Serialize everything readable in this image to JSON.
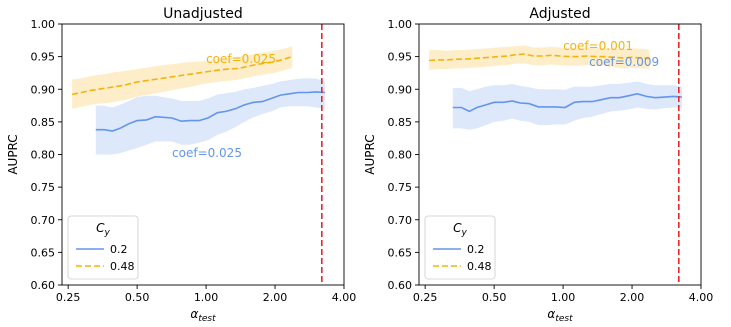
{
  "chart_data": [
    {
      "type": "line",
      "title": "Unadjusted",
      "xlabel_main": "α",
      "xlabel_sub": "test",
      "ylabel": "AUPRC",
      "xscale": "log",
      "xlim": [
        0.235,
        4.0
      ],
      "ylim": [
        0.6,
        1.0
      ],
      "xticks": [
        0.25,
        0.5,
        1.0,
        2.0,
        4.0
      ],
      "xtick_labels": [
        "0.25",
        "0.50",
        "1.00",
        "2.00",
        "4.00"
      ],
      "yticks": [
        0.6,
        0.65,
        0.7,
        0.75,
        0.8,
        0.85,
        0.9,
        0.95,
        1.0
      ],
      "ytick_labels": [
        "0.60",
        "0.65",
        "0.70",
        "0.75",
        "0.80",
        "0.85",
        "0.90",
        "0.95",
        "1.00"
      ],
      "vline_x": 3.2,
      "legend_title_main": "C",
      "legend_title_sub": "y",
      "legend_position": "lower left",
      "series": [
        {
          "name": "0.2",
          "color": "#6495ED",
          "style": "solid",
          "x": [
            0.33,
            0.36,
            0.39,
            0.42,
            0.46,
            0.5,
            0.55,
            0.6,
            0.65,
            0.71,
            0.78,
            0.85,
            0.93,
            1.02,
            1.12,
            1.22,
            1.34,
            1.47,
            1.61,
            1.76,
            1.93,
            2.11,
            2.31,
            2.53,
            2.77,
            3.03,
            3.3
          ],
          "y": [
            0.838,
            0.838,
            0.836,
            0.84,
            0.847,
            0.852,
            0.853,
            0.858,
            0.857,
            0.856,
            0.851,
            0.852,
            0.852,
            0.856,
            0.864,
            0.866,
            0.87,
            0.876,
            0.88,
            0.881,
            0.886,
            0.891,
            0.893,
            0.895,
            0.895,
            0.896,
            0.895
          ],
          "lower": [
            0.8,
            0.8,
            0.8,
            0.802,
            0.806,
            0.81,
            0.815,
            0.82,
            0.82,
            0.82,
            0.815,
            0.815,
            0.818,
            0.822,
            0.83,
            0.835,
            0.842,
            0.85,
            0.857,
            0.862,
            0.866,
            0.872,
            0.874,
            0.874,
            0.874,
            0.872,
            0.87
          ],
          "upper": [
            0.875,
            0.875,
            0.872,
            0.876,
            0.882,
            0.888,
            0.89,
            0.89,
            0.888,
            0.886,
            0.882,
            0.882,
            0.882,
            0.886,
            0.892,
            0.894,
            0.896,
            0.9,
            0.902,
            0.905,
            0.908,
            0.912,
            0.914,
            0.916,
            0.917,
            0.916,
            0.912
          ]
        },
        {
          "name": "0.48",
          "color": "#F5B30A",
          "style": "dashed",
          "x": [
            0.26,
            0.285,
            0.31,
            0.34,
            0.37,
            0.4,
            0.44,
            0.48,
            0.52,
            0.57,
            0.62,
            0.68,
            0.74,
            0.81,
            0.89,
            0.97,
            1.06,
            1.16,
            1.27,
            1.39,
            1.52,
            1.66,
            1.82,
            1.99,
            2.18,
            2.38
          ],
          "y": [
            0.892,
            0.895,
            0.898,
            0.9,
            0.902,
            0.904,
            0.906,
            0.91,
            0.912,
            0.914,
            0.916,
            0.918,
            0.92,
            0.922,
            0.924,
            0.926,
            0.928,
            0.93,
            0.931,
            0.932,
            0.935,
            0.938,
            0.94,
            0.942,
            0.946,
            0.95
          ],
          "lower": [
            0.87,
            0.873,
            0.876,
            0.878,
            0.879,
            0.881,
            0.883,
            0.887,
            0.89,
            0.892,
            0.895,
            0.897,
            0.9,
            0.902,
            0.905,
            0.908,
            0.91,
            0.912,
            0.913,
            0.915,
            0.918,
            0.921,
            0.923,
            0.925,
            0.929,
            0.933
          ],
          "upper": [
            0.915,
            0.917,
            0.92,
            0.922,
            0.924,
            0.926,
            0.928,
            0.93,
            0.932,
            0.934,
            0.936,
            0.938,
            0.939,
            0.941,
            0.942,
            0.943,
            0.945,
            0.947,
            0.948,
            0.95,
            0.952,
            0.955,
            0.957,
            0.959,
            0.962,
            0.966
          ]
        }
      ],
      "annotations": [
        {
          "text": "coef=0.025",
          "x": 1.0,
          "y": 0.94,
          "color": "#F5B30A"
        },
        {
          "text": "coef=0.025",
          "x": 0.71,
          "y": 0.796,
          "color": "#6495ED"
        }
      ]
    },
    {
      "type": "line",
      "title": "Adjusted",
      "xlabel_main": "α",
      "xlabel_sub": "test",
      "ylabel": "AUPRC",
      "xscale": "log",
      "xlim": [
        0.235,
        4.0
      ],
      "ylim": [
        0.6,
        1.0
      ],
      "xticks": [
        0.25,
        0.5,
        1.0,
        2.0,
        4.0
      ],
      "xtick_labels": [
        "0.25",
        "0.50",
        "1.00",
        "2.00",
        "4.00"
      ],
      "yticks": [
        0.6,
        0.65,
        0.7,
        0.75,
        0.8,
        0.85,
        0.9,
        0.95,
        1.0
      ],
      "ytick_labels": [
        "0.60",
        "0.65",
        "0.70",
        "0.75",
        "0.80",
        "0.85",
        "0.90",
        "0.95",
        "1.00"
      ],
      "vline_x": 3.2,
      "legend_title_main": "C",
      "legend_title_sub": "y",
      "legend_position": "lower left",
      "series": [
        {
          "name": "0.2",
          "color": "#6495ED",
          "style": "solid",
          "x": [
            0.33,
            0.36,
            0.39,
            0.42,
            0.46,
            0.5,
            0.55,
            0.6,
            0.65,
            0.71,
            0.78,
            0.85,
            0.93,
            1.02,
            1.12,
            1.22,
            1.34,
            1.47,
            1.61,
            1.76,
            1.93,
            2.11,
            2.31,
            2.53,
            2.77,
            3.03,
            3.3
          ],
          "y": [
            0.872,
            0.872,
            0.866,
            0.872,
            0.876,
            0.88,
            0.88,
            0.882,
            0.879,
            0.878,
            0.873,
            0.873,
            0.873,
            0.872,
            0.88,
            0.881,
            0.881,
            0.884,
            0.887,
            0.887,
            0.89,
            0.893,
            0.889,
            0.887,
            0.888,
            0.889,
            0.888
          ],
          "lower": [
            0.84,
            0.84,
            0.838,
            0.84,
            0.845,
            0.85,
            0.852,
            0.855,
            0.852,
            0.85,
            0.845,
            0.845,
            0.846,
            0.846,
            0.852,
            0.856,
            0.858,
            0.862,
            0.866,
            0.867,
            0.869,
            0.872,
            0.87,
            0.869,
            0.871,
            0.872,
            0.871
          ],
          "upper": [
            0.902,
            0.902,
            0.897,
            0.9,
            0.904,
            0.906,
            0.906,
            0.908,
            0.905,
            0.903,
            0.9,
            0.9,
            0.9,
            0.899,
            0.904,
            0.904,
            0.904,
            0.906,
            0.908,
            0.908,
            0.91,
            0.912,
            0.908,
            0.906,
            0.906,
            0.906,
            0.904
          ]
        },
        {
          "name": "0.48",
          "color": "#F5B30A",
          "style": "dashed",
          "x": [
            0.26,
            0.285,
            0.31,
            0.34,
            0.37,
            0.4,
            0.44,
            0.48,
            0.52,
            0.57,
            0.62,
            0.68,
            0.74,
            0.81,
            0.89,
            0.97,
            1.06,
            1.16,
            1.27,
            1.39,
            1.52,
            1.66,
            1.82,
            1.99,
            2.18,
            2.38
          ],
          "y": [
            0.944,
            0.945,
            0.945,
            0.946,
            0.946,
            0.947,
            0.948,
            0.949,
            0.95,
            0.951,
            0.953,
            0.954,
            0.951,
            0.951,
            0.952,
            0.951,
            0.95,
            0.95,
            0.951,
            0.95,
            0.95,
            0.949,
            0.948,
            0.949,
            0.948,
            0.947
          ],
          "lower": [
            0.93,
            0.931,
            0.931,
            0.932,
            0.932,
            0.933,
            0.934,
            0.935,
            0.936,
            0.937,
            0.939,
            0.94,
            0.937,
            0.937,
            0.938,
            0.937,
            0.936,
            0.936,
            0.937,
            0.936,
            0.936,
            0.934,
            0.932,
            0.933,
            0.932,
            0.931
          ],
          "upper": [
            0.96,
            0.96,
            0.959,
            0.96,
            0.96,
            0.961,
            0.962,
            0.963,
            0.964,
            0.965,
            0.966,
            0.967,
            0.964,
            0.964,
            0.965,
            0.964,
            0.963,
            0.963,
            0.964,
            0.963,
            0.963,
            0.962,
            0.962,
            0.963,
            0.962,
            0.961
          ]
        }
      ],
      "annotations": [
        {
          "text": "coef=0.001",
          "x": 1.0,
          "y": 0.96,
          "color": "#F5B30A"
        },
        {
          "text": "coef=0.009",
          "x": 1.3,
          "y": 0.936,
          "color": "#6495ED"
        }
      ]
    }
  ]
}
